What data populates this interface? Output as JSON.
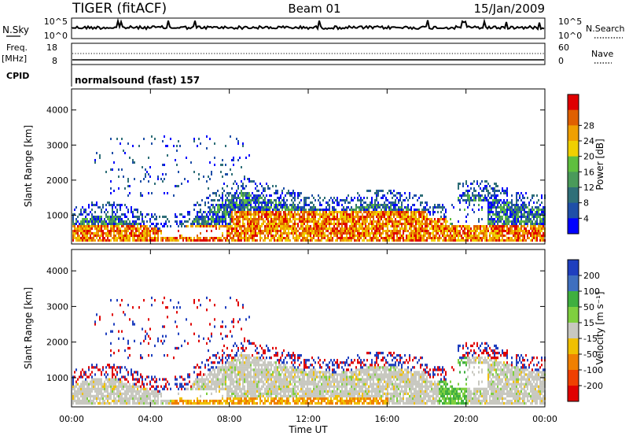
{
  "header": {
    "radar": "TIGER (fitACF)",
    "beam": "Beam 01",
    "date": "15/Jan/2009"
  },
  "noise_panel": {
    "left_label": "N.Sky",
    "right_label": "N.Search",
    "left_ticks": [
      "10^5",
      "10^0"
    ],
    "right_ticks": [
      "10^5",
      "10^0"
    ]
  },
  "freq_panel": {
    "left_label_1": "Freq.",
    "left_label_2": "[MHz]",
    "right_label": "Nave",
    "left_ticks": [
      "18",
      "8"
    ],
    "right_ticks": [
      "60",
      "0"
    ]
  },
  "cpid_panel": {
    "label": "CPID",
    "text": "normalsound (fast) 157"
  },
  "chart_data": [
    {
      "type": "heatmap",
      "name": "power",
      "ylabel": "Slant Range [km]",
      "xlabel": "",
      "ylim": [
        180,
        4600
      ],
      "y_ticks": [
        "1000",
        "2000",
        "3000",
        "4000"
      ],
      "colorbar_label": "Power [dB]",
      "colorbar_ticks": [
        "4",
        "8",
        "12",
        "16",
        "20",
        "24",
        "28"
      ],
      "colors": [
        "#0000ff",
        "#1f4fa8",
        "#2f6f78",
        "#4a9a5a",
        "#5fbf3f",
        "#f0d000",
        "#f0a000",
        "#e06000",
        "#e00000"
      ],
      "description_points": [
        {
          "t": 0.0,
          "r": 700,
          "level": 7
        },
        {
          "t": 5.0,
          "r": 700,
          "level": 6
        },
        {
          "t": 10.0,
          "r": 900,
          "level": 7
        },
        {
          "t": 14.0,
          "r": 800,
          "level": 8
        },
        {
          "t": 18.0,
          "r": 900,
          "level": 7
        },
        {
          "t": 21.0,
          "r": 1200,
          "level": 3
        }
      ]
    },
    {
      "type": "heatmap",
      "name": "velocity",
      "ylabel": "Slant Range [km]",
      "xlabel": "Time UT",
      "ylim": [
        180,
        4600
      ],
      "y_ticks": [
        "1000",
        "2000",
        "3000",
        "4000"
      ],
      "x_ticks": [
        "00:00",
        "04:00",
        "08:00",
        "12:00",
        "16:00",
        "20:00",
        "00:00"
      ],
      "colorbar_label": "Velocity [m s⁻¹]",
      "colorbar_ticks": [
        "200",
        "100",
        "50",
        "15",
        "-15",
        "-50",
        "-100",
        "-200"
      ],
      "colors": [
        "#1f3fbf",
        "#3f6fbf",
        "#3faf3f",
        "#7fcf3f",
        "#c8c8c0",
        "#f0c000",
        "#f08000",
        "#f04000",
        "#e00000"
      ]
    }
  ]
}
